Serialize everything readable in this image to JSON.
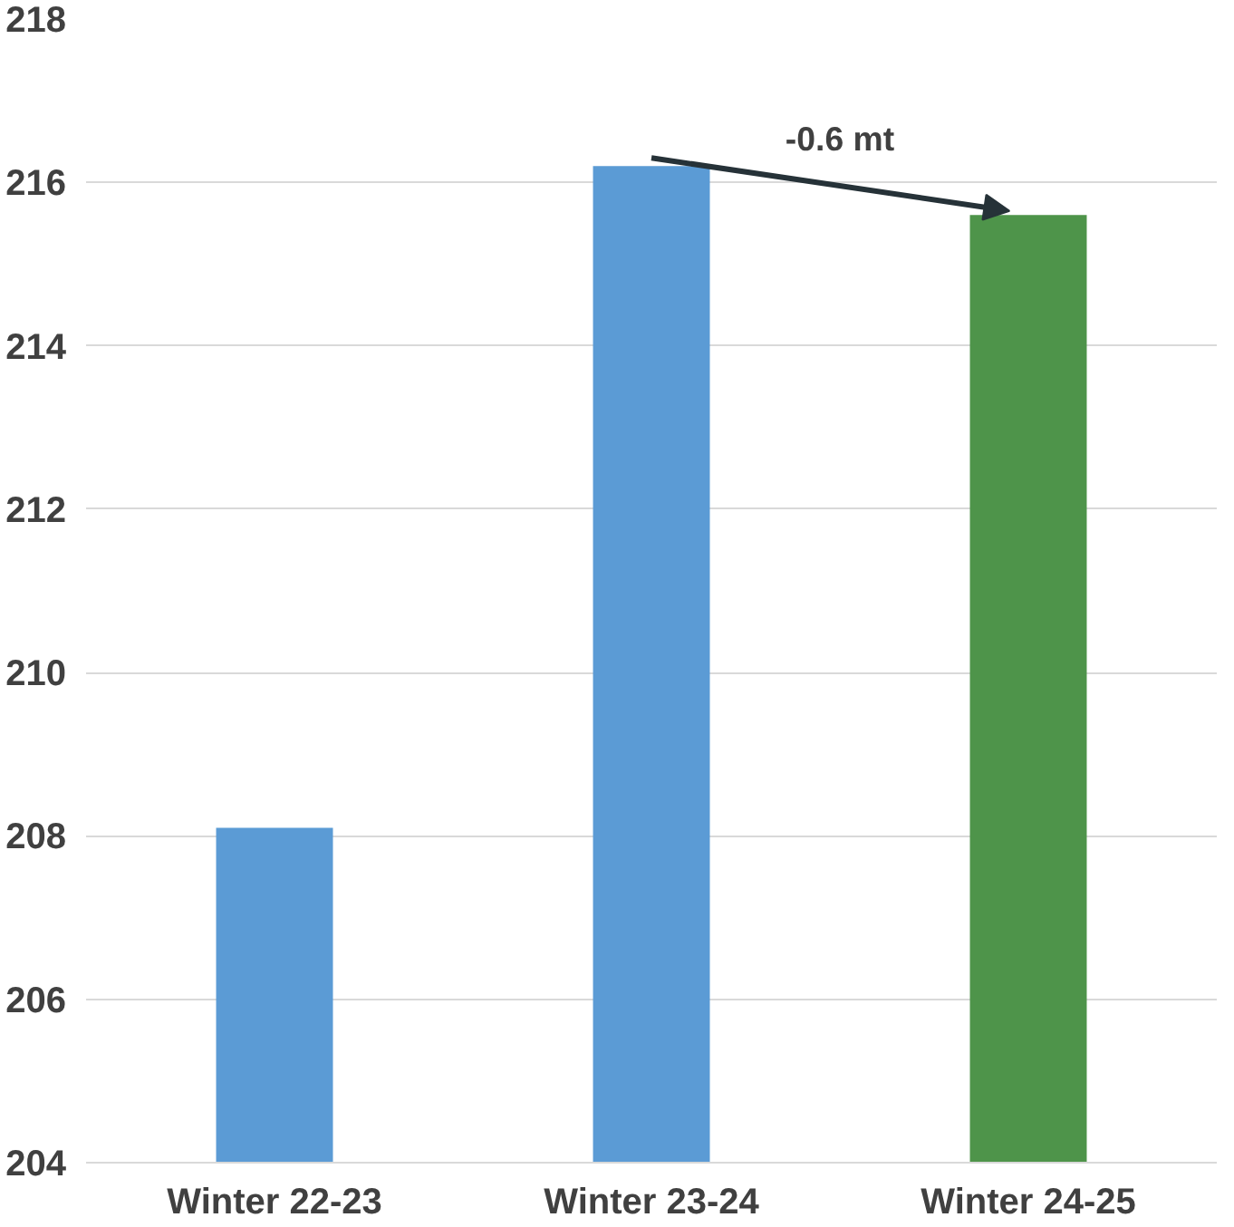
{
  "chart_data": {
    "type": "bar",
    "categories": [
      "Winter 22-23",
      "Winter 23-24",
      "Winter 24-25"
    ],
    "values": [
      208.1,
      216.2,
      215.6
    ],
    "colors": [
      "#5b9bd5",
      "#5b9bd5",
      "#4e944a"
    ],
    "ylim": [
      204,
      218
    ],
    "yticks": [
      204,
      206,
      208,
      210,
      212,
      214,
      216,
      218
    ],
    "grid": "y",
    "annotations": [
      "-0.6 mt"
    ]
  }
}
